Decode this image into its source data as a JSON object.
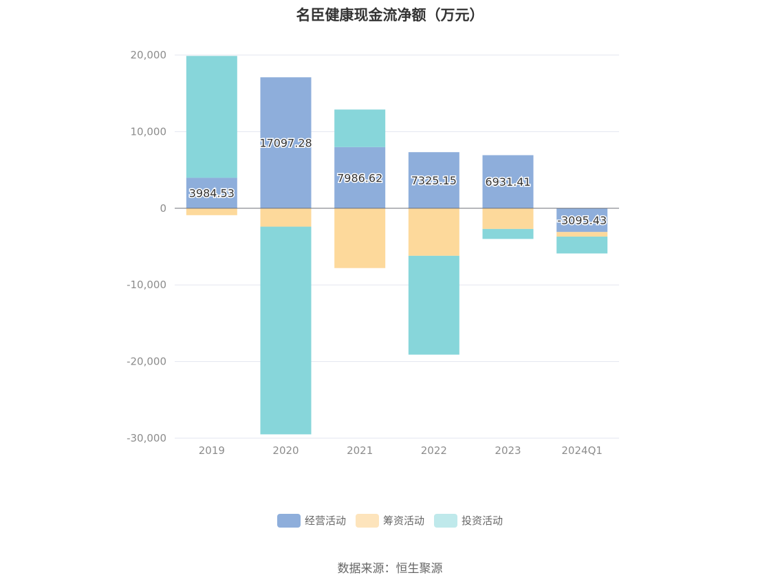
{
  "source_text": "数据来源：恒生聚源",
  "chart_data": {
    "type": "bar",
    "stacked": true,
    "title": "名臣健康现金流净额（万元）",
    "xlabel": "",
    "ylabel": "",
    "categories": [
      "2019",
      "2020",
      "2021",
      "2022",
      "2023",
      "2024Q1"
    ],
    "ylim": [
      -30000,
      20000
    ],
    "yticks": [
      20000,
      10000,
      0,
      -10000,
      -20000,
      -30000
    ],
    "ytick_labels": [
      "20,000",
      "10,000",
      "0",
      "-10,000",
      "-20,000",
      "-30,000"
    ],
    "grid": true,
    "legend_position": "bottom-center",
    "series": [
      {
        "name": "经营活动",
        "color": "#8eaedb",
        "values": [
          3984.53,
          17097.28,
          7986.62,
          7325.15,
          6931.41,
          -3095.43
        ],
        "labels": [
          "3984.53",
          "17097.28",
          "7986.62",
          "7325.15",
          "6931.41",
          "-3095.43"
        ]
      },
      {
        "name": "筹资活动",
        "color": "#fdd99b",
        "values": [
          -900,
          -2400,
          -7800,
          -6200,
          -2700,
          -600
        ]
      },
      {
        "name": "投资活动",
        "color": "#87d6da",
        "values": [
          15900,
          -27100,
          4900,
          -12900,
          -1300,
          -2200
        ]
      }
    ]
  }
}
